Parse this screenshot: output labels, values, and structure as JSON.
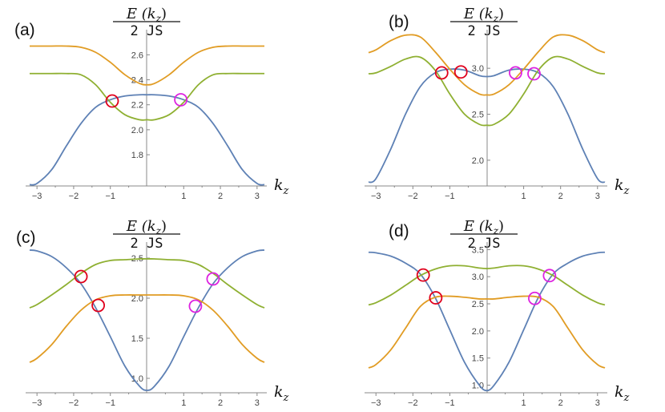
{
  "colors": {
    "blue": "#5e81b5",
    "orange": "#e19c24",
    "green": "#8fb032",
    "red": "#e0001c",
    "magenta": "#dd22e0",
    "axis": "#888888"
  },
  "axis_labels": {
    "y_num": "E (k",
    "y_sub": "z",
    "y_close": ")",
    "y_den": "2 JS",
    "x_main": "k",
    "x_sub": "z"
  },
  "chart_data": [
    {
      "type": "line",
      "panel_label": "(a)",
      "xlim": [
        -3.2,
        3.2
      ],
      "ylim": [
        1.55,
        2.75
      ],
      "xticks": [
        -3,
        -2,
        -1,
        1,
        2,
        3
      ],
      "yticks": [
        1.8,
        2.0,
        2.2,
        2.4,
        2.6
      ],
      "x": [
        -3.2,
        -3.0,
        -2.6,
        -2.2,
        -1.8,
        -1.4,
        -1.0,
        -0.6,
        -0.2,
        0,
        0.2,
        0.6,
        1.0,
        1.4,
        1.8,
        2.2,
        2.6,
        3.0,
        3.2
      ],
      "series": [
        {
          "color": "blue",
          "values": [
            1.56,
            1.57,
            1.68,
            1.87,
            2.05,
            2.18,
            2.24,
            2.27,
            2.28,
            2.28,
            2.28,
            2.27,
            2.24,
            2.18,
            2.05,
            1.87,
            1.68,
            1.57,
            1.56
          ]
        },
        {
          "color": "orange",
          "values": [
            2.67,
            2.67,
            2.67,
            2.67,
            2.66,
            2.62,
            2.54,
            2.44,
            2.37,
            2.36,
            2.37,
            2.44,
            2.54,
            2.62,
            2.66,
            2.67,
            2.67,
            2.67,
            2.67
          ]
        },
        {
          "color": "green",
          "values": [
            2.45,
            2.45,
            2.45,
            2.45,
            2.44,
            2.36,
            2.22,
            2.12,
            2.08,
            2.08,
            2.08,
            2.12,
            2.22,
            2.36,
            2.44,
            2.45,
            2.45,
            2.45,
            2.45
          ]
        }
      ],
      "markers": [
        {
          "x": -0.95,
          "y": 2.23,
          "color": "red"
        },
        {
          "x": 0.92,
          "y": 2.24,
          "color": "magenta"
        }
      ]
    },
    {
      "type": "line",
      "panel_label": "(b)",
      "xlim": [
        -3.2,
        3.2
      ],
      "ylim": [
        1.72,
        3.35
      ],
      "xticks": [
        -3,
        -2,
        -1,
        1,
        2,
        3
      ],
      "yticks": [
        2.0,
        2.5,
        3.0
      ],
      "x": [
        -3.2,
        -3.0,
        -2.6,
        -2.2,
        -1.8,
        -1.4,
        -1.0,
        -0.6,
        -0.2,
        0,
        0.2,
        0.6,
        1.0,
        1.4,
        1.8,
        2.2,
        2.6,
        3.0,
        3.2
      ],
      "series": [
        {
          "color": "blue",
          "values": [
            1.76,
            1.8,
            2.12,
            2.5,
            2.8,
            2.95,
            2.99,
            2.98,
            2.92,
            2.91,
            2.92,
            2.98,
            2.99,
            2.95,
            2.8,
            2.5,
            2.12,
            1.8,
            1.76
          ]
        },
        {
          "color": "orange",
          "values": [
            3.17,
            3.2,
            3.3,
            3.36,
            3.34,
            3.18,
            2.99,
            2.82,
            2.72,
            2.71,
            2.72,
            2.82,
            2.99,
            3.18,
            3.34,
            3.36,
            3.3,
            3.2,
            3.17
          ]
        },
        {
          "color": "green",
          "values": [
            2.94,
            2.95,
            3.02,
            3.1,
            3.12,
            2.98,
            2.72,
            2.5,
            2.39,
            2.38,
            2.39,
            2.5,
            2.72,
            2.98,
            3.12,
            3.1,
            3.02,
            2.95,
            2.94
          ]
        }
      ],
      "markers": [
        {
          "x": -1.22,
          "y": 2.95,
          "color": "red"
        },
        {
          "x": -0.7,
          "y": 2.96,
          "color": "red"
        },
        {
          "x": 0.78,
          "y": 2.95,
          "color": "magenta"
        },
        {
          "x": 1.28,
          "y": 2.94,
          "color": "magenta"
        }
      ]
    },
    {
      "type": "line",
      "panel_label": "(c)",
      "xlim": [
        -3.2,
        3.2
      ],
      "ylim": [
        0.82,
        2.62
      ],
      "xticks": [
        -3,
        -2,
        -1,
        1,
        2,
        3
      ],
      "yticks": [
        1.0,
        1.5,
        2.0,
        2.5
      ],
      "x": [
        -3.2,
        -3.0,
        -2.6,
        -2.2,
        -1.8,
        -1.4,
        -1.0,
        -0.6,
        -0.2,
        0,
        0.2,
        0.6,
        1.0,
        1.4,
        1.8,
        2.2,
        2.6,
        3.0,
        3.2
      ],
      "series": [
        {
          "color": "blue",
          "values": [
            2.6,
            2.59,
            2.52,
            2.38,
            2.18,
            1.88,
            1.52,
            1.15,
            0.9,
            0.85,
            0.9,
            1.15,
            1.52,
            1.88,
            2.18,
            2.38,
            2.52,
            2.59,
            2.6
          ]
        },
        {
          "color": "orange",
          "values": [
            1.2,
            1.25,
            1.42,
            1.65,
            1.85,
            1.98,
            2.03,
            2.04,
            2.04,
            2.04,
            2.04,
            2.04,
            2.03,
            1.98,
            1.85,
            1.65,
            1.42,
            1.25,
            1.2
          ]
        },
        {
          "color": "green",
          "values": [
            1.88,
            1.92,
            2.04,
            2.17,
            2.31,
            2.42,
            2.47,
            2.48,
            2.49,
            2.49,
            2.49,
            2.48,
            2.47,
            2.42,
            2.31,
            2.17,
            2.04,
            1.92,
            1.88
          ]
        }
      ],
      "markers": [
        {
          "x": -1.8,
          "y": 2.27,
          "color": "red"
        },
        {
          "x": -1.33,
          "y": 1.91,
          "color": "red"
        },
        {
          "x": 1.32,
          "y": 1.9,
          "color": "magenta"
        },
        {
          "x": 1.8,
          "y": 2.24,
          "color": "magenta"
        }
      ]
    },
    {
      "type": "line",
      "panel_label": "(d)",
      "xlim": [
        -3.2,
        3.2
      ],
      "ylim": [
        0.86,
        3.52
      ],
      "xticks": [
        -3,
        -2,
        -1,
        1,
        2,
        3
      ],
      "yticks": [
        1.0,
        1.5,
        2.0,
        2.5,
        3.0,
        3.5
      ],
      "x": [
        -3.2,
        -3.0,
        -2.6,
        -2.2,
        -1.8,
        -1.4,
        -1.0,
        -0.6,
        -0.2,
        0,
        0.2,
        0.6,
        1.0,
        1.4,
        1.8,
        2.2,
        2.6,
        3.0,
        3.2
      ],
      "series": [
        {
          "color": "blue",
          "values": [
            3.45,
            3.44,
            3.38,
            3.25,
            3.05,
            2.62,
            2.02,
            1.42,
            1.0,
            0.9,
            1.0,
            1.42,
            2.02,
            2.62,
            3.05,
            3.25,
            3.38,
            3.44,
            3.45
          ]
        },
        {
          "color": "orange",
          "values": [
            1.32,
            1.38,
            1.65,
            2.05,
            2.45,
            2.62,
            2.64,
            2.62,
            2.59,
            2.59,
            2.59,
            2.62,
            2.64,
            2.62,
            2.45,
            2.05,
            1.65,
            1.38,
            1.32
          ]
        },
        {
          "color": "green",
          "values": [
            2.48,
            2.52,
            2.66,
            2.84,
            3.02,
            3.14,
            3.2,
            3.2,
            3.16,
            3.15,
            3.16,
            3.2,
            3.2,
            3.14,
            3.02,
            2.84,
            2.66,
            2.52,
            2.48
          ]
        }
      ],
      "markers": [
        {
          "x": -1.72,
          "y": 3.03,
          "color": "red"
        },
        {
          "x": -1.38,
          "y": 2.61,
          "color": "red"
        },
        {
          "x": 1.3,
          "y": 2.6,
          "color": "magenta"
        },
        {
          "x": 1.7,
          "y": 3.02,
          "color": "magenta"
        }
      ]
    }
  ]
}
